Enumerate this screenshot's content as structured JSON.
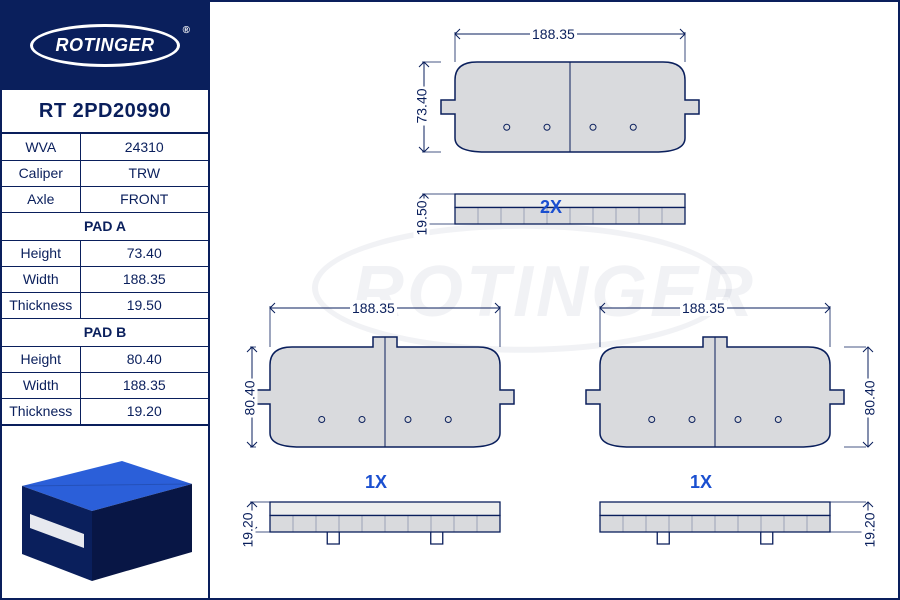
{
  "brand": "ROTINGER",
  "part_number": "RT 2PD20990",
  "specs": {
    "wva_label": "WVA",
    "wva": "24310",
    "caliper_label": "Caliper",
    "caliper": "TRW",
    "axle_label": "Axle",
    "axle": "FRONT"
  },
  "pad_a": {
    "title": "PAD A",
    "height_label": "Height",
    "height": "73.40",
    "width_label": "Width",
    "width": "188.35",
    "thickness_label": "Thickness",
    "thickness": "19.50"
  },
  "pad_b": {
    "title": "PAD B",
    "height_label": "Height",
    "height": "80.40",
    "width_label": "Width",
    "width": "188.35",
    "thickness_label": "Thickness",
    "thickness": "19.20"
  },
  "diagram": {
    "stroke": "#0a1f5c",
    "fill": "#d9dadd",
    "accent": "#1a4fd0",
    "top_pad": {
      "width_dim": "188.35",
      "height_dim": "73.40",
      "thickness_dim": "19.50",
      "qty": "2X"
    },
    "bottom_left": {
      "width_dim": "188.35",
      "height_dim": "80.40",
      "thickness_dim": "19.20",
      "qty": "1X"
    },
    "bottom_right": {
      "width_dim": "188.35",
      "height_dim": "80.40",
      "thickness_dim": "19.20",
      "qty": "1X"
    }
  },
  "box_colors": {
    "top": "#2b5fd9",
    "front": "#0a1f5c",
    "side": "#081645"
  }
}
